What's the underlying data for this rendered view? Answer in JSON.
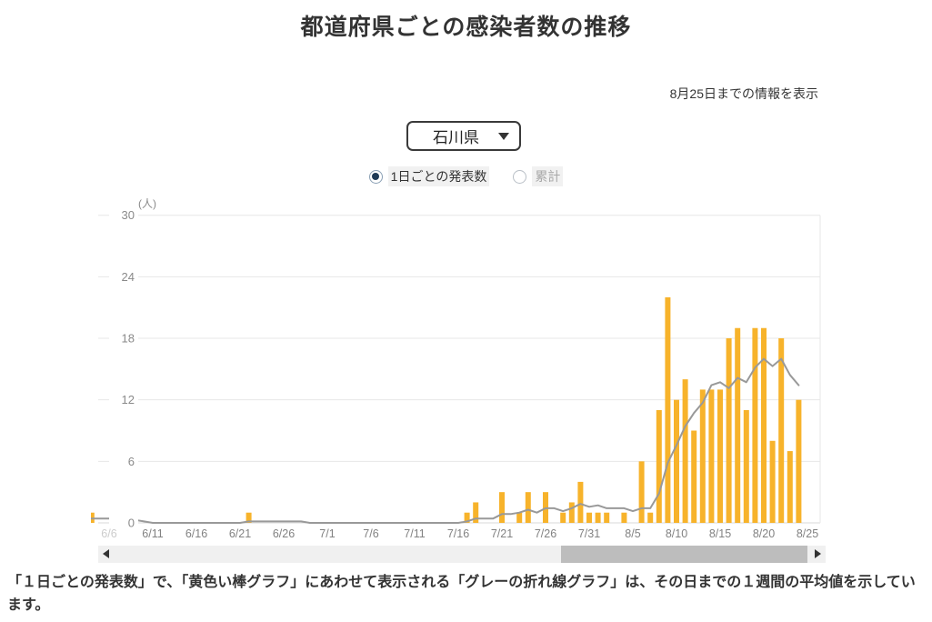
{
  "page": {
    "title": "都道府県ごとの感染者数の推移",
    "info_note": "8月25日までの情報を表示",
    "footnote": "「１日ごとの発表数」で、「黄色い棒グラフ」にあわせて表示される「グレーの折れ線グラフ」は、その日までの１週間の平均値を示しています。"
  },
  "controls": {
    "prefecture_select": {
      "value": "石川県",
      "icon": "caret-down-icon"
    },
    "radio_options": [
      {
        "label": "1日ごとの発表数",
        "selected": true
      },
      {
        "label": "累計",
        "selected": false
      }
    ]
  },
  "chart_data": {
    "type": "bar",
    "title": "",
    "unit_label": "(人)",
    "ylim": [
      0,
      30
    ],
    "yticks": [
      0,
      6,
      12,
      18,
      24,
      30
    ],
    "grid": true,
    "bar_color": "#F7B32B",
    "line_color": "#999999",
    "line_represents": "その日までの１週間の平均値",
    "x_tick_labels": [
      "6/6",
      "6/11",
      "6/16",
      "6/21",
      "6/26",
      "7/1",
      "7/6",
      "7/11",
      "7/16",
      "7/21",
      "7/26",
      "7/31",
      "8/5",
      "8/10",
      "8/15",
      "8/20",
      "8/25"
    ],
    "faded_first_tick": true,
    "dates": [
      "6/2",
      "6/3",
      "6/4",
      "6/5",
      "6/6",
      "6/7",
      "6/8",
      "6/9",
      "6/10",
      "6/11",
      "6/12",
      "6/13",
      "6/14",
      "6/15",
      "6/16",
      "6/17",
      "6/18",
      "6/19",
      "6/20",
      "6/21",
      "6/22",
      "6/23",
      "6/24",
      "6/25",
      "6/26",
      "6/27",
      "6/28",
      "6/29",
      "6/30",
      "7/1",
      "7/2",
      "7/3",
      "7/4",
      "7/5",
      "7/6",
      "7/7",
      "7/8",
      "7/9",
      "7/10",
      "7/11",
      "7/12",
      "7/13",
      "7/14",
      "7/15",
      "7/16",
      "7/17",
      "7/18",
      "7/19",
      "7/20",
      "7/21",
      "7/22",
      "7/23",
      "7/24",
      "7/25",
      "7/26",
      "7/27",
      "7/28",
      "7/29",
      "7/30",
      "7/31",
      "8/1",
      "8/2",
      "8/3",
      "8/4",
      "8/5",
      "8/6",
      "8/7",
      "8/8",
      "8/9",
      "8/10",
      "8/11",
      "8/12",
      "8/13",
      "8/14",
      "8/15",
      "8/16",
      "8/17",
      "8/18",
      "8/19",
      "8/20",
      "8/21",
      "8/22",
      "8/23",
      "8/24",
      "8/25"
    ],
    "values": [
      1,
      1,
      1,
      0,
      0,
      0,
      0,
      0,
      0,
      0,
      0,
      0,
      0,
      0,
      0,
      0,
      0,
      0,
      0,
      0,
      1,
      0,
      0,
      0,
      0,
      0,
      0,
      0,
      0,
      0,
      0,
      0,
      0,
      0,
      0,
      0,
      0,
      0,
      0,
      0,
      0,
      0,
      0,
      0,
      0,
      1,
      2,
      0,
      0,
      3,
      0,
      1,
      3,
      0,
      3,
      0,
      1,
      2,
      4,
      1,
      1,
      1,
      0,
      1,
      0,
      6,
      1,
      11,
      22,
      12,
      14,
      9,
      13,
      13,
      13,
      18,
      19,
      11,
      19,
      19,
      8,
      18,
      7,
      12,
      0
    ]
  },
  "scrollbar": {
    "left_arrow": "left-triangle",
    "right_arrow": "right-triangle"
  }
}
